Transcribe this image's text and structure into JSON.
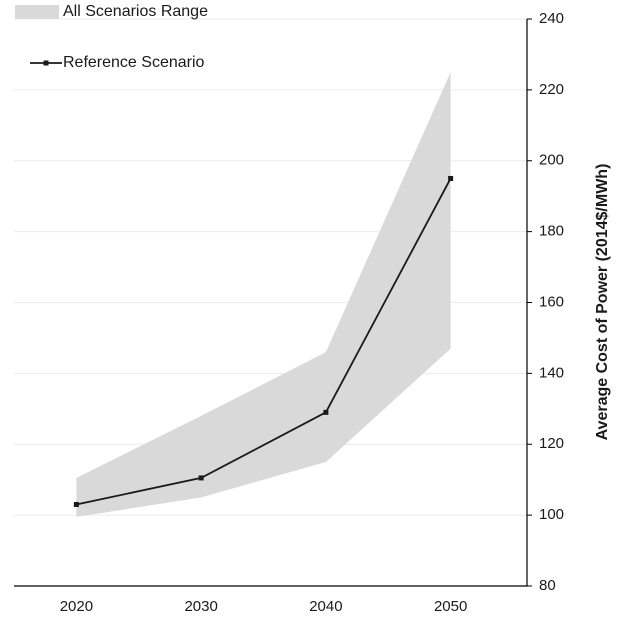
{
  "chart_data": {
    "type": "line",
    "y_label": "Average Cost of Power (2014$/MWh)",
    "categories": [
      "2020",
      "2030",
      "2040",
      "2050"
    ],
    "series": [
      {
        "name": "All Scenarios Range",
        "color": "#d9d9d9",
        "kind": "range",
        "lower": [
          99.5,
          105,
          115,
          147
        ],
        "upper": [
          110.5,
          128,
          146,
          225
        ]
      },
      {
        "name": "Reference Scenario",
        "color": "#1a1a1a",
        "kind": "line",
        "values": [
          103,
          110.5,
          129,
          195
        ]
      }
    ],
    "ylim": [
      80,
      240
    ],
    "yticks": [
      80,
      100,
      120,
      140,
      160,
      180,
      200,
      220,
      240
    ],
    "grid": true,
    "y_axis_side": "right",
    "legend": "top-left"
  }
}
